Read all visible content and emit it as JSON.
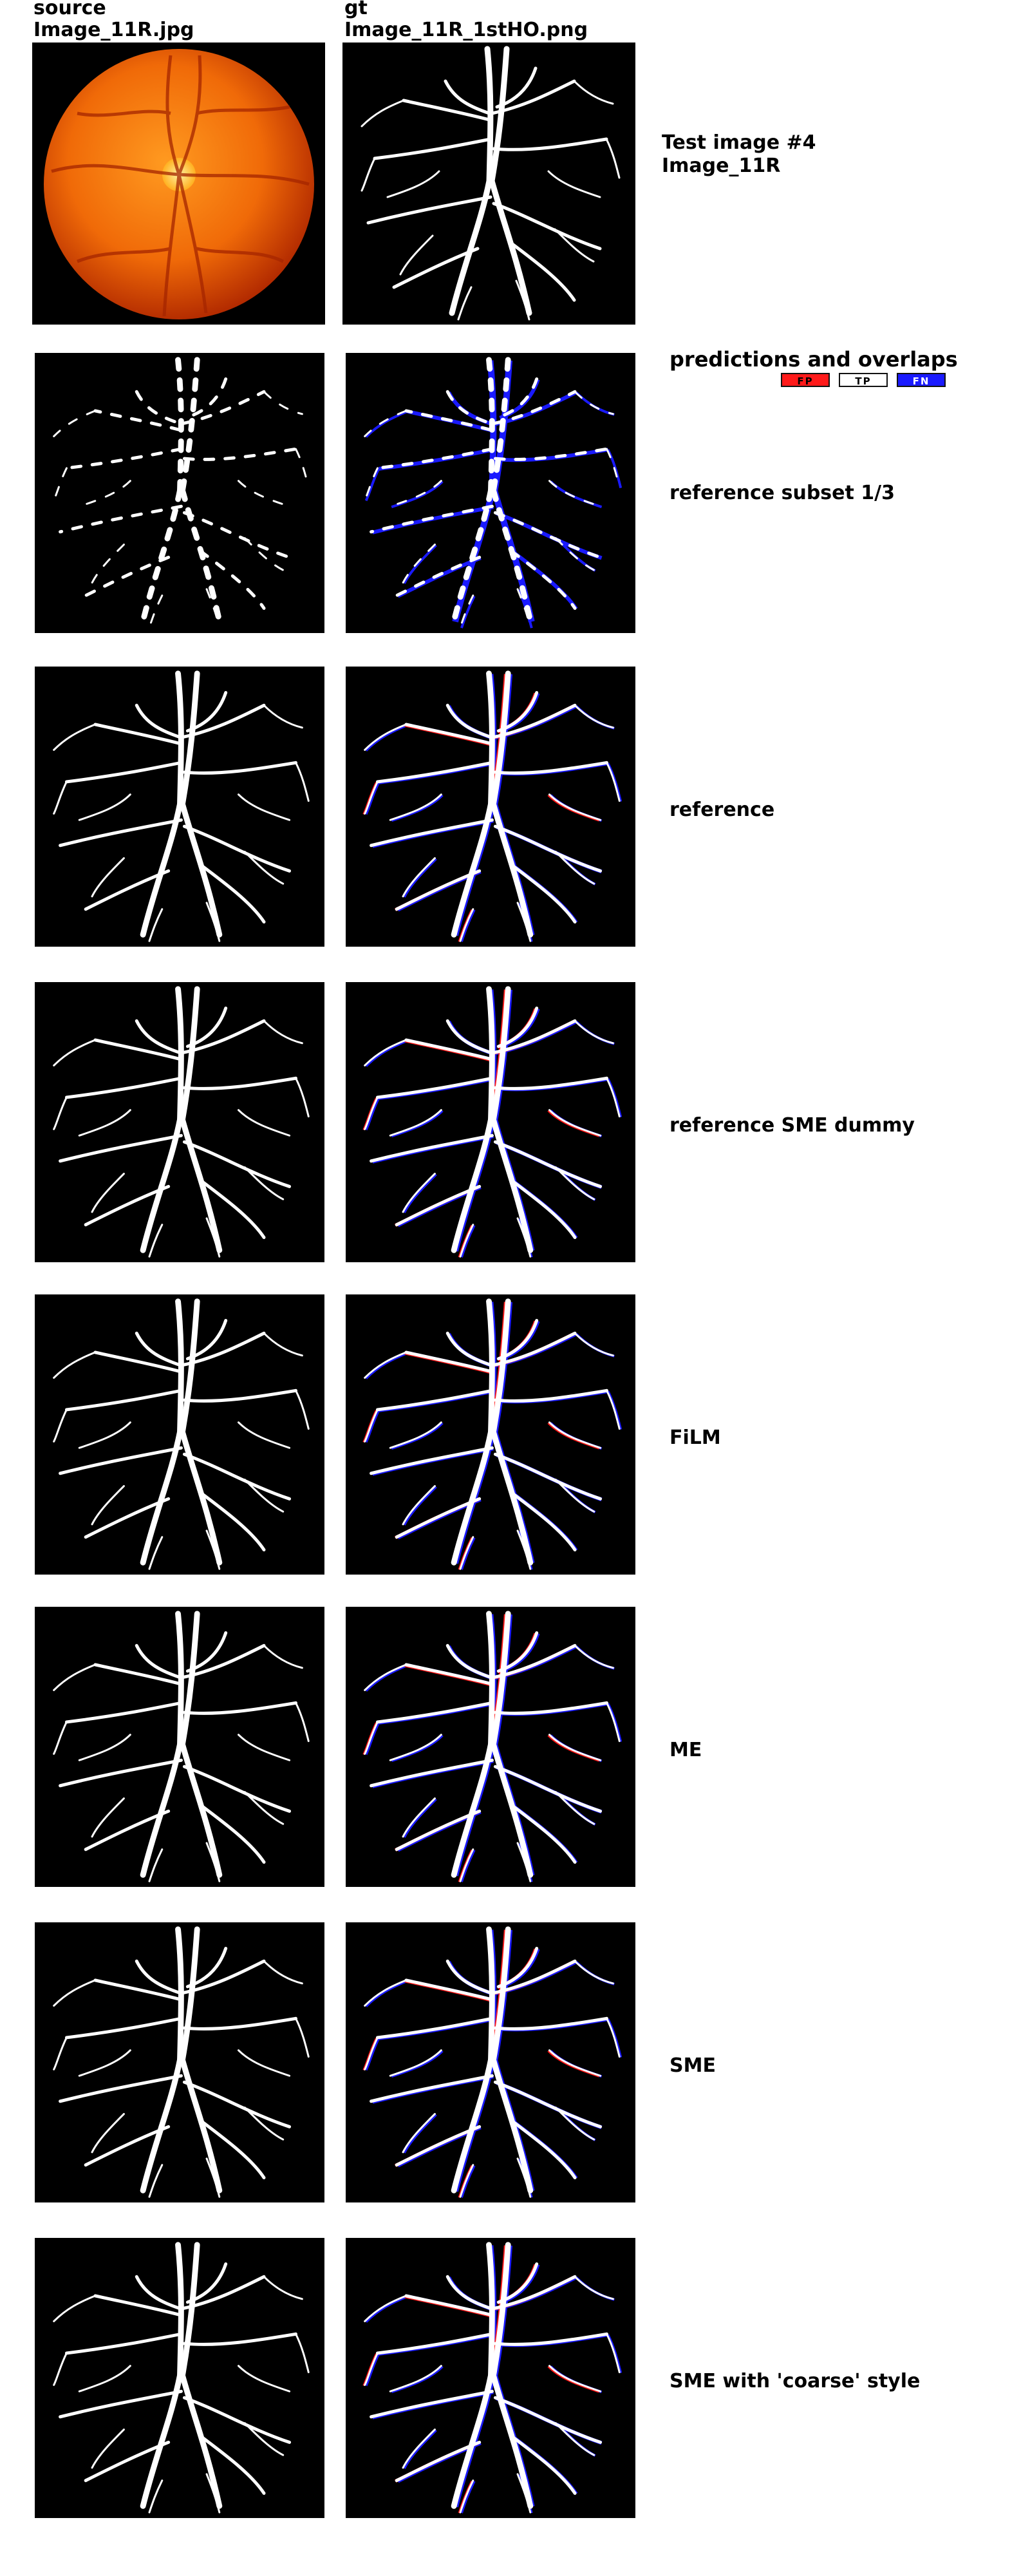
{
  "header": {
    "source_title": "source",
    "source_file": "Image_11R.jpg",
    "gt_title": "gt",
    "gt_file": "Image_11R_1stHO.png",
    "test_label": "Test image #4",
    "test_name": "Image_11R",
    "predictions_title": "predictions and overlaps"
  },
  "legend": {
    "fp": "FP",
    "tp": "TP",
    "fn": "FN",
    "colors": {
      "fp": "#ff1a1a",
      "tp": "#ffffff",
      "fn": "#1a1aff"
    }
  },
  "rows": [
    {
      "label": "reference subset 1/3"
    },
    {
      "label": "reference"
    },
    {
      "label": "reference SME dummy"
    },
    {
      "label": "FiLM"
    },
    {
      "label": "ME"
    },
    {
      "label": "SME"
    },
    {
      "label": "SME with 'coarse' style"
    }
  ],
  "colors": {
    "fundus_center": "#ffb030",
    "fundus_edge": "#c03000",
    "optic_disc": "#fff060",
    "background": "#000000",
    "vessel": "#ffffff"
  }
}
